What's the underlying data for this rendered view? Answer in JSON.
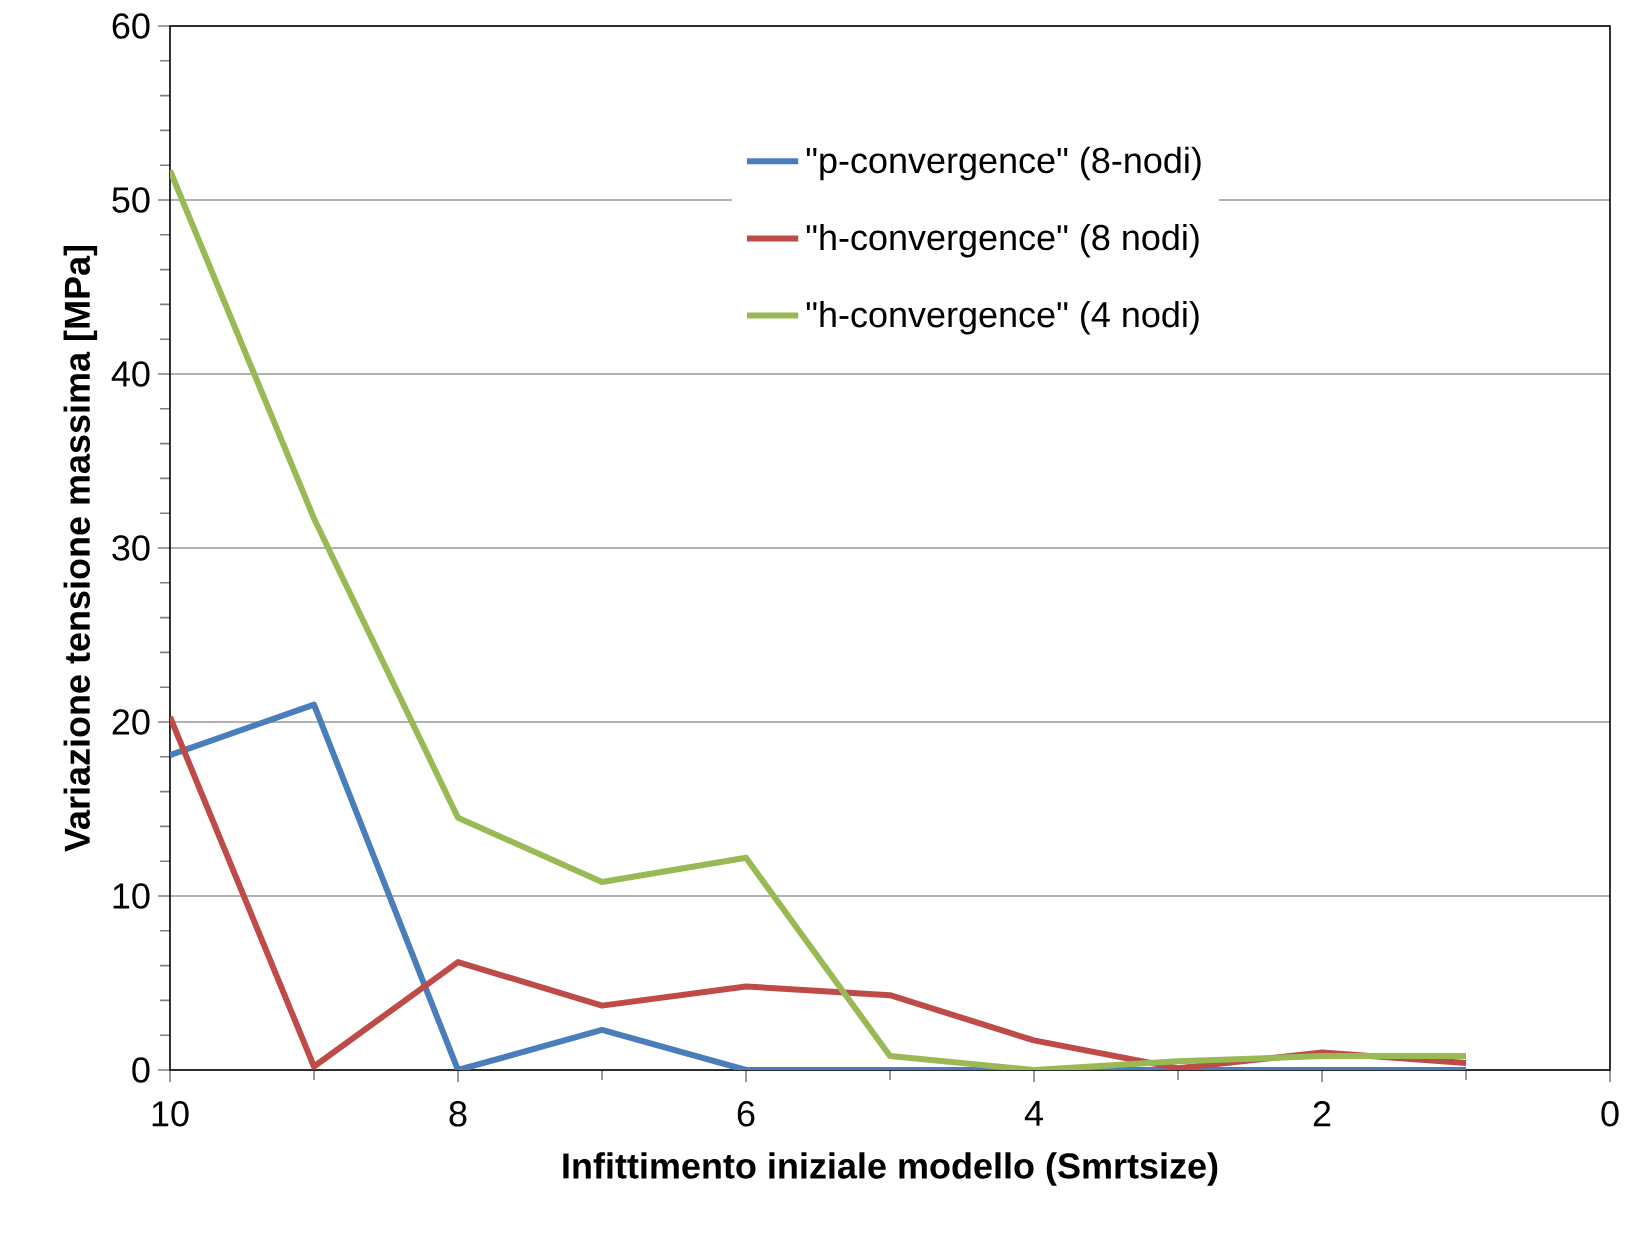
{
  "chart_data": {
    "type": "line",
    "xlabel": "Infittimento iniziale modello (Smrtsize)",
    "ylabel": "Variazione tensione massima [MPa]",
    "x": [
      10,
      9,
      8,
      7,
      6,
      5,
      4,
      3,
      2,
      1
    ],
    "series": [
      {
        "name": "\"p-convergence\" (8-nodi)",
        "color": "#4a7ebb",
        "values": [
          18.1,
          21.0,
          0,
          2.3,
          0,
          0,
          0,
          0,
          0,
          0
        ]
      },
      {
        "name": "\"h-convergence\" (8 nodi)",
        "color": "#be4b48",
        "values": [
          20.3,
          0.2,
          6.2,
          3.7,
          4.8,
          4.3,
          1.7,
          0.1,
          1.0,
          0.4
        ]
      },
      {
        "name": "\"h-convergence\" (4 nodi)",
        "color": "#98b954",
        "values": [
          51.7,
          31.7,
          14.5,
          10.8,
          12.2,
          0.8,
          0,
          0.5,
          0.8,
          0.8
        ]
      }
    ],
    "xlim": [
      10,
      0
    ],
    "ylim": [
      0,
      60
    ],
    "xticks": [
      10,
      8,
      6,
      4,
      2,
      0
    ],
    "yticks": [
      0,
      10,
      20,
      30,
      40,
      50,
      60
    ],
    "grid": "y",
    "legend": "top right",
    "marker": "none",
    "line_style": "solid"
  }
}
